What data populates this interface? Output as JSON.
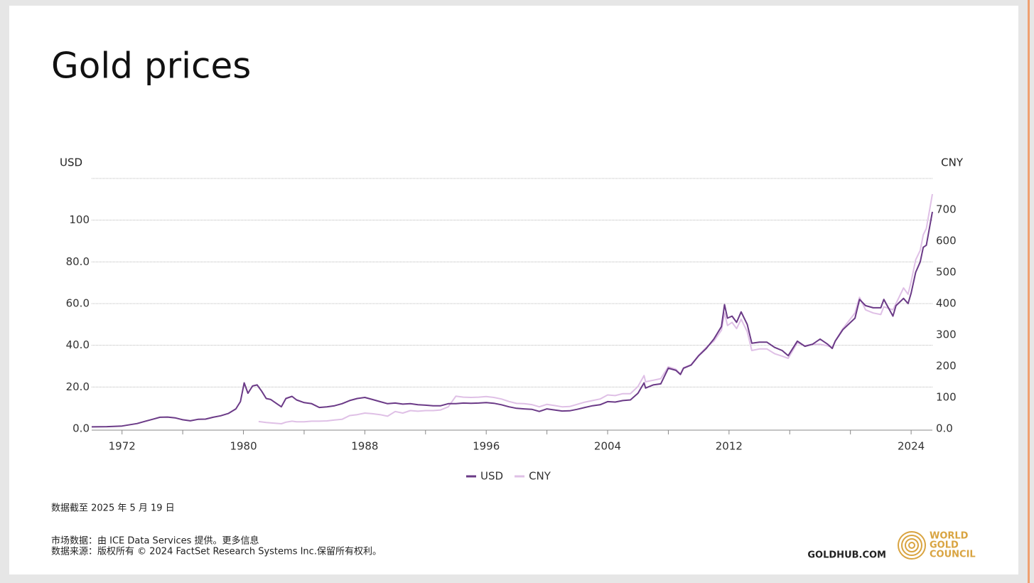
{
  "chart_data": {
    "type": "line",
    "title": "Gold prices",
    "ylabel": "USD",
    "y2label": "CNY",
    "xlim": [
      1970,
      2025.4
    ],
    "xticks": [
      1972,
      1980,
      1988,
      1996,
      2004,
      2012,
      2024
    ],
    "xminorticks": [
      1976,
      1984,
      1992,
      2000,
      2008,
      2016,
      2020
    ],
    "ylim": [
      0,
      120
    ],
    "yticks": [
      {
        "value": 0,
        "label": "0.0"
      },
      {
        "value": 20,
        "label": "20.0"
      },
      {
        "value": 40,
        "label": "40.0"
      },
      {
        "value": 60,
        "label": "60.0"
      },
      {
        "value": 80,
        "label": "80.0"
      },
      100
    ],
    "y2lim": [
      0,
      800
    ],
    "y2ticks": [
      {
        "value": 0,
        "label": "0.0"
      },
      100,
      200,
      300,
      400,
      500,
      600,
      700
    ],
    "grid": true,
    "legend": "bottom",
    "series": [
      {
        "name": "USD",
        "color": "#6b3a87",
        "axis": "y",
        "x": [
          1970,
          1971,
          1972,
          1973,
          1973.5,
          1974,
          1974.5,
          1975,
          1975.5,
          1976,
          1976.5,
          1977,
          1977.5,
          1978,
          1978.5,
          1979,
          1979.5,
          1979.8,
          1980.05,
          1980.3,
          1980.6,
          1980.9,
          1981.2,
          1981.5,
          1981.8,
          1982.2,
          1982.5,
          1982.8,
          1983.2,
          1983.5,
          1984,
          1984.5,
          1985,
          1985.5,
          1986,
          1986.5,
          1987,
          1987.5,
          1988,
          1988.5,
          1989,
          1989.5,
          1990,
          1990.5,
          1991,
          1991.5,
          1992,
          1992.5,
          1993,
          1993.5,
          1994,
          1994.5,
          1995,
          1995.5,
          1996,
          1996.5,
          1997,
          1997.5,
          1998,
          1998.5,
          1999,
          1999.5,
          2000,
          2000.5,
          2001,
          2001.5,
          2002,
          2002.5,
          2003,
          2003.5,
          2004,
          2004.5,
          2005,
          2005.5,
          2006,
          2006.4,
          2006.5,
          2007,
          2007.5,
          2008,
          2008.5,
          2008.8,
          2009,
          2009.5,
          2010,
          2010.5,
          2011,
          2011.5,
          2011.7,
          2011.9,
          2012.2,
          2012.5,
          2012.8,
          2013.2,
          2013.5,
          2014,
          2014.5,
          2015,
          2015.5,
          2015.9,
          2016.5,
          2017,
          2017.5,
          2018,
          2018.5,
          2018.8,
          2019,
          2019.5,
          2020.3,
          2020.6,
          2021,
          2021.5,
          2022,
          2022.2,
          2022.8,
          2023,
          2023.5,
          2023.8,
          2024,
          2024.3,
          2024.6,
          2024.8,
          2025,
          2025.4
        ],
        "values": [
          0.9,
          1.0,
          1.3,
          2.5,
          3.5,
          4.5,
          5.5,
          5.6,
          5.2,
          4.3,
          3.8,
          4.5,
          4.6,
          5.5,
          6.2,
          7.3,
          9.5,
          13,
          22,
          17,
          20.5,
          21,
          18,
          14.5,
          14,
          12,
          10.5,
          14.5,
          15.5,
          13.8,
          12.5,
          12,
          10.2,
          10.5,
          11,
          12,
          13.5,
          14.5,
          15,
          14,
          13,
          12,
          12.3,
          11.8,
          12,
          11.5,
          11.3,
          11,
          11,
          12,
          12,
          12.3,
          12.2,
          12.3,
          12.5,
          12.2,
          11.5,
          10.5,
          9.8,
          9.5,
          9.3,
          8.3,
          9.5,
          9,
          8.5,
          8.6,
          9.3,
          10.2,
          11,
          11.5,
          13,
          12.8,
          13.5,
          13.8,
          17,
          22,
          19.5,
          21,
          21.5,
          29,
          28,
          26,
          29,
          30.5,
          35,
          38.5,
          43,
          49,
          59.5,
          53,
          54,
          51,
          56,
          50,
          41,
          41.5,
          41.5,
          39,
          37.5,
          35,
          42,
          39.5,
          40.5,
          43,
          40.5,
          38.5,
          42,
          47.5,
          53,
          62,
          59,
          58,
          58,
          62,
          54,
          59,
          62.5,
          60,
          65,
          75,
          80,
          87,
          88,
          104
        ]
      },
      {
        "name": "CNY",
        "color": "#dfc0e6",
        "axis": "y2",
        "x": [
          1981,
          1981.5,
          1982,
          1982.5,
          1982.8,
          1983.2,
          1983.5,
          1984,
          1984.5,
          1985,
          1985.5,
          1986,
          1986.5,
          1987,
          1987.5,
          1988,
          1988.5,
          1989,
          1989.5,
          1990,
          1990.5,
          1991,
          1991.5,
          1992,
          1992.5,
          1993,
          1993.5,
          1994,
          1994.5,
          1995,
          1995.5,
          1996,
          1996.5,
          1997,
          1997.5,
          1998,
          1998.5,
          1999,
          1999.5,
          2000,
          2000.5,
          2001,
          2001.5,
          2002,
          2002.5,
          2003,
          2003.5,
          2004,
          2004.5,
          2005,
          2005.5,
          2006,
          2006.4,
          2006.5,
          2007,
          2007.5,
          2008,
          2008.5,
          2008.8,
          2009,
          2009.5,
          2010,
          2010.5,
          2011,
          2011.5,
          2011.7,
          2011.9,
          2012.2,
          2012.5,
          2012.8,
          2013.2,
          2013.5,
          2014,
          2014.5,
          2015,
          2015.5,
          2015.9,
          2016.5,
          2017,
          2017.5,
          2018,
          2018.5,
          2018.8,
          2019,
          2019.5,
          2020.3,
          2020.6,
          2021,
          2021.5,
          2022,
          2022.2,
          2022.8,
          2023,
          2023.5,
          2023.8,
          2024,
          2024.3,
          2024.6,
          2024.8,
          2025,
          2025.4
        ],
        "values": [
          23,
          20,
          18,
          16,
          21,
          24,
          22,
          22,
          24,
          24,
          25,
          28,
          30,
          42,
          45,
          50,
          48,
          45,
          40,
          55,
          50,
          58,
          56,
          58,
          58,
          60,
          70,
          104,
          101,
          100,
          101,
          103,
          100,
          95,
          87,
          81,
          80,
          77,
          70,
          78,
          74,
          70,
          71,
          78,
          85,
          90,
          95,
          108,
          106,
          112,
          112,
          135,
          170,
          150,
          155,
          160,
          198,
          190,
          175,
          195,
          205,
          235,
          260,
          280,
          315,
          370,
          330,
          340,
          320,
          350,
          310,
          250,
          255,
          255,
          240,
          232,
          225,
          275,
          265,
          270,
          270,
          265,
          260,
          280,
          320,
          370,
          420,
          380,
          370,
          365,
          390,
          380,
          400,
          450,
          430,
          470,
          540,
          570,
          620,
          640,
          750
        ]
      }
    ]
  },
  "footer": {
    "data_date": "数据截至 2025 年 5 月 19 日",
    "market_data": "市场数据：由 ICE Data Services 提供。更多信息",
    "source": "数据来源：版权所有 © 2024 FactSet Research Systems Inc.保留所有权利。",
    "site": "GOLDHUB.COM",
    "logo": [
      "WORLD",
      "GOLD",
      "COUNCIL"
    ]
  }
}
